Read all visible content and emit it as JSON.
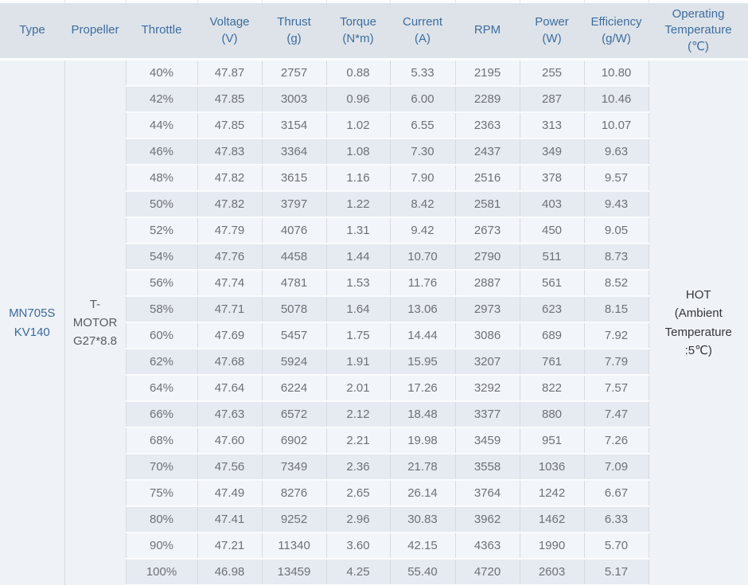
{
  "table": {
    "headers": [
      "Type",
      "Propeller",
      "Throttle",
      "Voltage\n(V)",
      "Thrust\n(g)",
      "Torque\n(N*m)",
      "Current\n(A)",
      "RPM",
      "Power\n(W)",
      "Efficiency\n(g/W)",
      "Operating\nTemperature\n(℃)"
    ],
    "column_keys": [
      "throttle",
      "voltage",
      "thrust",
      "torque",
      "current",
      "rpm",
      "power",
      "efficiency"
    ],
    "type": "MN705S\nKV140",
    "propeller": "T-\nMOTOR\nG27*8.8",
    "operating_temperature": "HOT\n(Ambient\nTemperature\n:5℃)",
    "rows": [
      [
        "40%",
        "47.87",
        "2757",
        "0.88",
        "5.33",
        "2195",
        "255",
        "10.80"
      ],
      [
        "42%",
        "47.85",
        "3003",
        "0.96",
        "6.00",
        "2289",
        "287",
        "10.46"
      ],
      [
        "44%",
        "47.85",
        "3154",
        "1.02",
        "6.55",
        "2363",
        "313",
        "10.07"
      ],
      [
        "46%",
        "47.83",
        "3364",
        "1.08",
        "7.30",
        "2437",
        "349",
        "9.63"
      ],
      [
        "48%",
        "47.82",
        "3615",
        "1.16",
        "7.90",
        "2516",
        "378",
        "9.57"
      ],
      [
        "50%",
        "47.82",
        "3797",
        "1.22",
        "8.42",
        "2581",
        "403",
        "9.43"
      ],
      [
        "52%",
        "47.79",
        "4076",
        "1.31",
        "9.42",
        "2673",
        "450",
        "9.05"
      ],
      [
        "54%",
        "47.76",
        "4458",
        "1.44",
        "10.70",
        "2790",
        "511",
        "8.73"
      ],
      [
        "56%",
        "47.74",
        "4781",
        "1.53",
        "11.76",
        "2887",
        "561",
        "8.52"
      ],
      [
        "58%",
        "47.71",
        "5078",
        "1.64",
        "13.06",
        "2973",
        "623",
        "8.15"
      ],
      [
        "60%",
        "47.69",
        "5457",
        "1.75",
        "14.44",
        "3086",
        "689",
        "7.92"
      ],
      [
        "62%",
        "47.68",
        "5924",
        "1.91",
        "15.95",
        "3207",
        "761",
        "7.79"
      ],
      [
        "64%",
        "47.64",
        "6224",
        "2.01",
        "17.26",
        "3292",
        "822",
        "7.57"
      ],
      [
        "66%",
        "47.63",
        "6572",
        "2.12",
        "18.48",
        "3377",
        "880",
        "7.47"
      ],
      [
        "68%",
        "47.60",
        "6902",
        "2.21",
        "19.98",
        "3459",
        "951",
        "7.26"
      ],
      [
        "70%",
        "47.56",
        "7349",
        "2.36",
        "21.78",
        "3558",
        "1036",
        "7.09"
      ],
      [
        "75%",
        "47.49",
        "8276",
        "2.65",
        "26.14",
        "3764",
        "1242",
        "6.67"
      ],
      [
        "80%",
        "47.41",
        "9252",
        "2.96",
        "30.83",
        "3962",
        "1462",
        "6.33"
      ],
      [
        "90%",
        "47.21",
        "11340",
        "3.60",
        "42.15",
        "4363",
        "1990",
        "5.70"
      ],
      [
        "100%",
        "46.98",
        "13459",
        "4.25",
        "55.40",
        "4720",
        "2603",
        "5.17"
      ]
    ],
    "colors": {
      "header_bg": "#dde3e9",
      "header_text": "#3e6d9f",
      "row_odd_bg": "#f2f5f9",
      "row_even_bg": "#e6eaf1",
      "merged_bg": "#eff2f6",
      "data_text": "#6e7177",
      "type_text": "#3a6a9c",
      "grid_line": "#d7dbe1"
    }
  }
}
